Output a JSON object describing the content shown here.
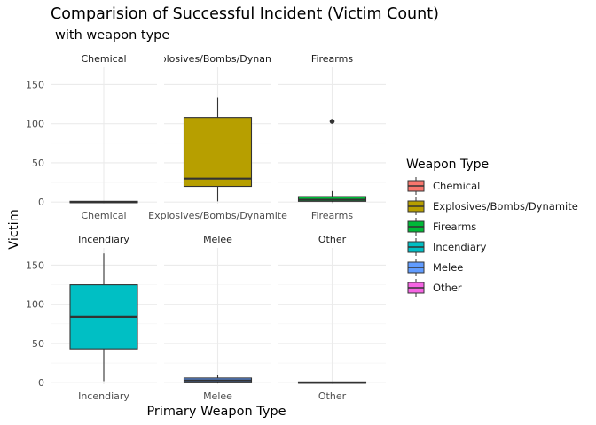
{
  "title": "Comparision of Successful Incident (Victim Count)",
  "subtitle": "with weapon type",
  "xlabel": "Primary Weapon Type",
  "ylabel": "Victim",
  "legend": {
    "title": "Weapon Type",
    "items": [
      {
        "label": "Chemical",
        "color": "#F8766D"
      },
      {
        "label": "Explosives/Bombs/Dynamite",
        "color": "#B79F00"
      },
      {
        "label": "Firearms",
        "color": "#00BA38"
      },
      {
        "label": "Incendiary",
        "color": "#00BFC4"
      },
      {
        "label": "Melee",
        "color": "#619CFF"
      },
      {
        "label": "Other",
        "color": "#F564E3"
      }
    ]
  },
  "chart_data": {
    "type": "boxplot",
    "facets": [
      {
        "strip": "Chemical",
        "tick": "Chemical",
        "color": "#F8766D",
        "box": {
          "min": 0,
          "q1": 0,
          "median": 0,
          "q3": 1,
          "max": 1
        },
        "outliers": []
      },
      {
        "strip": "Explosives/Bombs/Dynamite",
        "tick": "Explosives/Bombs/Dynamite",
        "color": "#B79F00",
        "box": {
          "min": 1,
          "q1": 20,
          "median": 30,
          "q3": 108,
          "max": 133
        },
        "outliers": []
      },
      {
        "strip": "Firearms",
        "tick": "Firearms",
        "color": "#00BA38",
        "box": {
          "min": 0,
          "q1": 1,
          "median": 3,
          "q3": 7,
          "max": 14
        },
        "outliers": [
          103
        ]
      },
      {
        "strip": "Incendiary",
        "tick": "Incendiary",
        "color": "#00BFC4",
        "box": {
          "min": 2,
          "q1": 43,
          "median": 84,
          "q3": 125,
          "max": 165
        },
        "outliers": []
      },
      {
        "strip": "Melee",
        "tick": "Melee",
        "color": "#619CFF",
        "box": {
          "min": 0,
          "q1": 1,
          "median": 3,
          "q3": 6,
          "max": 10
        },
        "outliers": []
      },
      {
        "strip": "Other",
        "tick": "Other",
        "color": "#F564E3",
        "box": {
          "min": 0,
          "q1": 0,
          "median": 0,
          "q3": 1,
          "max": 1
        },
        "outliers": []
      }
    ],
    "y_ticks": [
      0,
      50,
      100,
      150
    ],
    "ylim": [
      -2,
      172
    ],
    "grid": true,
    "legend_position": "right"
  }
}
